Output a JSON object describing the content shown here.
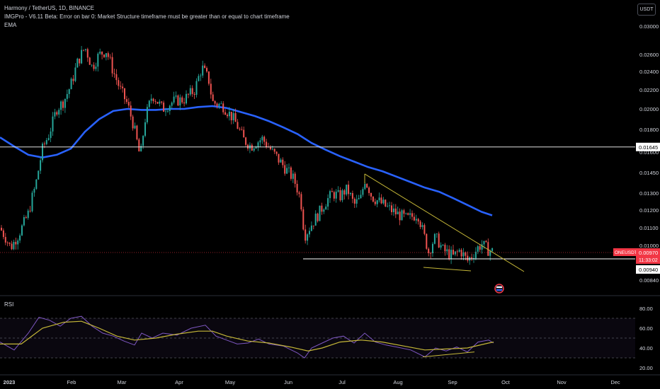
{
  "header": {
    "symbol_line": "Harmony / TetherUS, 1D, BINANCE",
    "indicator_error": "IMGPro - V6.11 Beta: Error on bar 0: Market Structure timeframe must be greater than or equal to chart timeframe",
    "ema_label": "EMA",
    "currency_button": "USDT"
  },
  "price_axis": {
    "ticks": [
      "0.03000",
      "0.02600",
      "0.02400",
      "0.02200",
      "0.02000",
      "0.01800",
      "0.01600",
      "0.01450",
      "0.01300",
      "0.01200",
      "0.01100",
      "0.01000",
      "0.00840"
    ],
    "level_label": "0.01645",
    "symbol_tag": "ONEUSDT",
    "last_price": "0.00970",
    "countdown": "11:33:02",
    "support_label": "0.00940"
  },
  "rsi": {
    "label": "RSI",
    "ticks": [
      "80.00",
      "60.00",
      "40.00",
      "20.00"
    ]
  },
  "time_axis": {
    "labels": [
      "2023",
      "Feb",
      "Mar",
      "Apr",
      "May",
      "Jun",
      "Jul",
      "Aug",
      "Sep",
      "Oct",
      "Nov",
      "Dec"
    ]
  },
  "colors": {
    "up": "#26a69a",
    "down": "#ef5350",
    "ema": "#2962ff",
    "trendline": "#c5b738",
    "rsi_line": "#7e57c2",
    "rsi_ma": "#c5b738",
    "last_price": "#f23645"
  },
  "chart_data": {
    "type": "candlestick",
    "ema_path": [
      [
        0,
        0.0173
      ],
      [
        20,
        0.0165
      ],
      [
        40,
        0.0158
      ],
      [
        60,
        0.0156
      ],
      [
        80,
        0.0158
      ],
      [
        100,
        0.0163
      ],
      [
        120,
        0.0178
      ],
      [
        140,
        0.019
      ],
      [
        160,
        0.0198
      ],
      [
        180,
        0.02
      ],
      [
        200,
        0.0199
      ],
      [
        220,
        0.0199
      ],
      [
        240,
        0.02
      ],
      [
        260,
        0.02
      ],
      [
        280,
        0.0202
      ],
      [
        300,
        0.0203
      ],
      [
        320,
        0.0201
      ],
      [
        340,
        0.0197
      ],
      [
        360,
        0.0193
      ],
      [
        380,
        0.0188
      ],
      [
        400,
        0.0182
      ],
      [
        420,
        0.0176
      ],
      [
        440,
        0.0168
      ],
      [
        460,
        0.0162
      ],
      [
        480,
        0.0157
      ],
      [
        500,
        0.0153
      ],
      [
        520,
        0.0149
      ],
      [
        540,
        0.0146
      ],
      [
        560,
        0.0142
      ],
      [
        580,
        0.0138
      ],
      [
        600,
        0.0134
      ],
      [
        620,
        0.0131
      ],
      [
        640,
        0.0127
      ],
      [
        660,
        0.0123
      ],
      [
        680,
        0.0119
      ],
      [
        695,
        0.0117
      ]
    ],
    "price_path": [
      [
        0,
        0.011
      ],
      [
        15,
        0.0099
      ],
      [
        25,
        0.0105
      ],
      [
        40,
        0.0118
      ],
      [
        50,
        0.0135
      ],
      [
        60,
        0.0163
      ],
      [
        70,
        0.0177
      ],
      [
        80,
        0.02
      ],
      [
        90,
        0.0208
      ],
      [
        100,
        0.0225
      ],
      [
        110,
        0.0252
      ],
      [
        120,
        0.027
      ],
      [
        130,
        0.0245
      ],
      [
        140,
        0.026
      ],
      [
        150,
        0.0265
      ],
      [
        160,
        0.024
      ],
      [
        170,
        0.022
      ],
      [
        180,
        0.0205
      ],
      [
        190,
        0.018
      ],
      [
        198,
        0.0155
      ],
      [
        205,
        0.019
      ],
      [
        215,
        0.0215
      ],
      [
        230,
        0.02
      ],
      [
        245,
        0.0208
      ],
      [
        260,
        0.021
      ],
      [
        275,
        0.022
      ],
      [
        285,
        0.0245
      ],
      [
        295,
        0.023
      ],
      [
        300,
        0.0207
      ],
      [
        315,
        0.0203
      ],
      [
        330,
        0.019
      ],
      [
        345,
        0.017
      ],
      [
        355,
        0.0165
      ],
      [
        370,
        0.0172
      ],
      [
        385,
        0.016
      ],
      [
        400,
        0.015
      ],
      [
        415,
        0.014
      ],
      [
        425,
        0.0125
      ],
      [
        430,
        0.0105
      ],
      [
        440,
        0.0112
      ],
      [
        450,
        0.0118
      ],
      [
        460,
        0.0125
      ],
      [
        470,
        0.013
      ],
      [
        480,
        0.0128
      ],
      [
        490,
        0.0133
      ],
      [
        500,
        0.0123
      ],
      [
        510,
        0.0127
      ],
      [
        515,
        0.014
      ],
      [
        525,
        0.0128
      ],
      [
        535,
        0.0125
      ],
      [
        545,
        0.0122
      ],
      [
        560,
        0.0118
      ],
      [
        575,
        0.0115
      ],
      [
        590,
        0.0118
      ],
      [
        605,
        0.0097
      ],
      [
        615,
        0.0105
      ],
      [
        625,
        0.0098
      ],
      [
        640,
        0.0095
      ],
      [
        650,
        0.0098
      ],
      [
        660,
        0.0093
      ],
      [
        670,
        0.0097
      ],
      [
        680,
        0.0101
      ],
      [
        690,
        0.0098
      ],
      [
        697,
        0.0097
      ]
    ],
    "horizontal_level": 0.01645,
    "support_level": 0.0094,
    "last_price": 0.0097,
    "trendline": [
      [
        515,
        0.0144
      ],
      [
        740,
        0.0088
      ]
    ],
    "lower_trendline": [
      [
        598,
        0.0093
      ],
      [
        665,
        0.0093
      ]
    ],
    "rsi_line": [
      [
        0,
        46
      ],
      [
        20,
        38
      ],
      [
        40,
        55
      ],
      [
        55,
        71
      ],
      [
        70,
        68
      ],
      [
        85,
        62
      ],
      [
        100,
        70
      ],
      [
        115,
        72
      ],
      [
        130,
        62
      ],
      [
        145,
        55
      ],
      [
        160,
        52
      ],
      [
        175,
        47
      ],
      [
        190,
        43
      ],
      [
        200,
        55
      ],
      [
        215,
        50
      ],
      [
        230,
        55
      ],
      [
        250,
        53
      ],
      [
        270,
        60
      ],
      [
        290,
        63
      ],
      [
        305,
        52
      ],
      [
        320,
        48
      ],
      [
        335,
        44
      ],
      [
        350,
        45
      ],
      [
        365,
        49
      ],
      [
        380,
        44
      ],
      [
        400,
        42
      ],
      [
        420,
        35
      ],
      [
        430,
        30
      ],
      [
        440,
        40
      ],
      [
        455,
        45
      ],
      [
        470,
        50
      ],
      [
        485,
        52
      ],
      [
        500,
        45
      ],
      [
        515,
        55
      ],
      [
        530,
        46
      ],
      [
        545,
        43
      ],
      [
        560,
        41
      ],
      [
        580,
        38
      ],
      [
        600,
        31
      ],
      [
        615,
        40
      ],
      [
        630,
        37
      ],
      [
        645,
        41
      ],
      [
        660,
        36
      ],
      [
        675,
        46
      ],
      [
        690,
        48
      ],
      [
        697,
        45
      ]
    ],
    "rsi_ma": [
      [
        0,
        44
      ],
      [
        30,
        44
      ],
      [
        60,
        60
      ],
      [
        90,
        66
      ],
      [
        115,
        67
      ],
      [
        140,
        60
      ],
      [
        165,
        52
      ],
      [
        190,
        48
      ],
      [
        220,
        50
      ],
      [
        250,
        54
      ],
      [
        280,
        57
      ],
      [
        300,
        57
      ],
      [
        320,
        52
      ],
      [
        350,
        47
      ],
      [
        380,
        45
      ],
      [
        410,
        41
      ],
      [
        435,
        37
      ],
      [
        455,
        40
      ],
      [
        480,
        46
      ],
      [
        510,
        48
      ],
      [
        540,
        46
      ],
      [
        570,
        42
      ],
      [
        600,
        38
      ],
      [
        630,
        39
      ],
      [
        660,
        40
      ],
      [
        690,
        45
      ],
      [
        697,
        46
      ]
    ],
    "rsi_trendline": [
      [
        597,
        31
      ],
      [
        670,
        36
      ]
    ],
    "rsi_levels": [
      70,
      50,
      30
    ]
  }
}
